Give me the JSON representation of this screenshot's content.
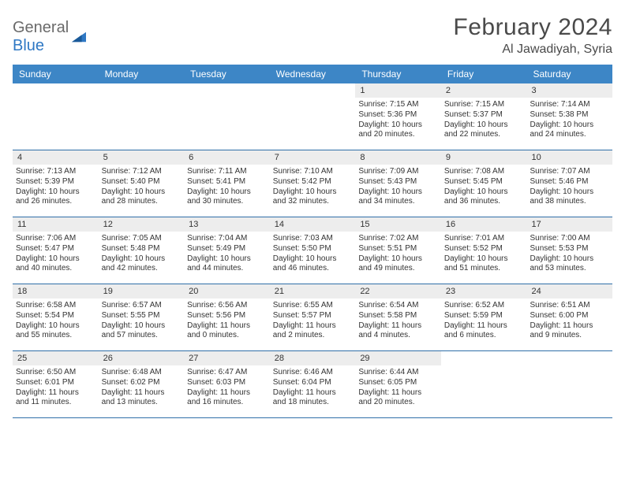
{
  "brand": {
    "name_a": "General",
    "name_b": "Blue"
  },
  "header": {
    "month_title": "February 2024",
    "location": "Al Jawadiyah, Syria"
  },
  "style": {
    "header_bg": "#3d86c6",
    "header_text": "#ffffff",
    "week_border": "#2f6fa8",
    "daynum_bg": "#ededed",
    "body_text": "#333333",
    "title_color": "#4a4a4a",
    "logo_gray": "#6a6a6a",
    "logo_blue": "#2f78c4",
    "page_bg": "#ffffff",
    "title_fontsize": 30,
    "location_fontsize": 16,
    "dayhdr_fontsize": 12,
    "cell_fontsize": 10
  },
  "day_headers": [
    "Sunday",
    "Monday",
    "Tuesday",
    "Wednesday",
    "Thursday",
    "Friday",
    "Saturday"
  ],
  "weeks": [
    [
      {
        "empty": true
      },
      {
        "empty": true
      },
      {
        "empty": true
      },
      {
        "empty": true
      },
      {
        "n": "1",
        "sunrise": "Sunrise: 7:15 AM",
        "sunset": "Sunset: 5:36 PM",
        "day1": "Daylight: 10 hours",
        "day2": "and 20 minutes."
      },
      {
        "n": "2",
        "sunrise": "Sunrise: 7:15 AM",
        "sunset": "Sunset: 5:37 PM",
        "day1": "Daylight: 10 hours",
        "day2": "and 22 minutes."
      },
      {
        "n": "3",
        "sunrise": "Sunrise: 7:14 AM",
        "sunset": "Sunset: 5:38 PM",
        "day1": "Daylight: 10 hours",
        "day2": "and 24 minutes."
      }
    ],
    [
      {
        "n": "4",
        "sunrise": "Sunrise: 7:13 AM",
        "sunset": "Sunset: 5:39 PM",
        "day1": "Daylight: 10 hours",
        "day2": "and 26 minutes."
      },
      {
        "n": "5",
        "sunrise": "Sunrise: 7:12 AM",
        "sunset": "Sunset: 5:40 PM",
        "day1": "Daylight: 10 hours",
        "day2": "and 28 minutes."
      },
      {
        "n": "6",
        "sunrise": "Sunrise: 7:11 AM",
        "sunset": "Sunset: 5:41 PM",
        "day1": "Daylight: 10 hours",
        "day2": "and 30 minutes."
      },
      {
        "n": "7",
        "sunrise": "Sunrise: 7:10 AM",
        "sunset": "Sunset: 5:42 PM",
        "day1": "Daylight: 10 hours",
        "day2": "and 32 minutes."
      },
      {
        "n": "8",
        "sunrise": "Sunrise: 7:09 AM",
        "sunset": "Sunset: 5:43 PM",
        "day1": "Daylight: 10 hours",
        "day2": "and 34 minutes."
      },
      {
        "n": "9",
        "sunrise": "Sunrise: 7:08 AM",
        "sunset": "Sunset: 5:45 PM",
        "day1": "Daylight: 10 hours",
        "day2": "and 36 minutes."
      },
      {
        "n": "10",
        "sunrise": "Sunrise: 7:07 AM",
        "sunset": "Sunset: 5:46 PM",
        "day1": "Daylight: 10 hours",
        "day2": "and 38 minutes."
      }
    ],
    [
      {
        "n": "11",
        "sunrise": "Sunrise: 7:06 AM",
        "sunset": "Sunset: 5:47 PM",
        "day1": "Daylight: 10 hours",
        "day2": "and 40 minutes."
      },
      {
        "n": "12",
        "sunrise": "Sunrise: 7:05 AM",
        "sunset": "Sunset: 5:48 PM",
        "day1": "Daylight: 10 hours",
        "day2": "and 42 minutes."
      },
      {
        "n": "13",
        "sunrise": "Sunrise: 7:04 AM",
        "sunset": "Sunset: 5:49 PM",
        "day1": "Daylight: 10 hours",
        "day2": "and 44 minutes."
      },
      {
        "n": "14",
        "sunrise": "Sunrise: 7:03 AM",
        "sunset": "Sunset: 5:50 PM",
        "day1": "Daylight: 10 hours",
        "day2": "and 46 minutes."
      },
      {
        "n": "15",
        "sunrise": "Sunrise: 7:02 AM",
        "sunset": "Sunset: 5:51 PM",
        "day1": "Daylight: 10 hours",
        "day2": "and 49 minutes."
      },
      {
        "n": "16",
        "sunrise": "Sunrise: 7:01 AM",
        "sunset": "Sunset: 5:52 PM",
        "day1": "Daylight: 10 hours",
        "day2": "and 51 minutes."
      },
      {
        "n": "17",
        "sunrise": "Sunrise: 7:00 AM",
        "sunset": "Sunset: 5:53 PM",
        "day1": "Daylight: 10 hours",
        "day2": "and 53 minutes."
      }
    ],
    [
      {
        "n": "18",
        "sunrise": "Sunrise: 6:58 AM",
        "sunset": "Sunset: 5:54 PM",
        "day1": "Daylight: 10 hours",
        "day2": "and 55 minutes."
      },
      {
        "n": "19",
        "sunrise": "Sunrise: 6:57 AM",
        "sunset": "Sunset: 5:55 PM",
        "day1": "Daylight: 10 hours",
        "day2": "and 57 minutes."
      },
      {
        "n": "20",
        "sunrise": "Sunrise: 6:56 AM",
        "sunset": "Sunset: 5:56 PM",
        "day1": "Daylight: 11 hours",
        "day2": "and 0 minutes."
      },
      {
        "n": "21",
        "sunrise": "Sunrise: 6:55 AM",
        "sunset": "Sunset: 5:57 PM",
        "day1": "Daylight: 11 hours",
        "day2": "and 2 minutes."
      },
      {
        "n": "22",
        "sunrise": "Sunrise: 6:54 AM",
        "sunset": "Sunset: 5:58 PM",
        "day1": "Daylight: 11 hours",
        "day2": "and 4 minutes."
      },
      {
        "n": "23",
        "sunrise": "Sunrise: 6:52 AM",
        "sunset": "Sunset: 5:59 PM",
        "day1": "Daylight: 11 hours",
        "day2": "and 6 minutes."
      },
      {
        "n": "24",
        "sunrise": "Sunrise: 6:51 AM",
        "sunset": "Sunset: 6:00 PM",
        "day1": "Daylight: 11 hours",
        "day2": "and 9 minutes."
      }
    ],
    [
      {
        "n": "25",
        "sunrise": "Sunrise: 6:50 AM",
        "sunset": "Sunset: 6:01 PM",
        "day1": "Daylight: 11 hours",
        "day2": "and 11 minutes."
      },
      {
        "n": "26",
        "sunrise": "Sunrise: 6:48 AM",
        "sunset": "Sunset: 6:02 PM",
        "day1": "Daylight: 11 hours",
        "day2": "and 13 minutes."
      },
      {
        "n": "27",
        "sunrise": "Sunrise: 6:47 AM",
        "sunset": "Sunset: 6:03 PM",
        "day1": "Daylight: 11 hours",
        "day2": "and 16 minutes."
      },
      {
        "n": "28",
        "sunrise": "Sunrise: 6:46 AM",
        "sunset": "Sunset: 6:04 PM",
        "day1": "Daylight: 11 hours",
        "day2": "and 18 minutes."
      },
      {
        "n": "29",
        "sunrise": "Sunrise: 6:44 AM",
        "sunset": "Sunset: 6:05 PM",
        "day1": "Daylight: 11 hours",
        "day2": "and 20 minutes."
      },
      {
        "empty": true
      },
      {
        "empty": true
      }
    ]
  ]
}
